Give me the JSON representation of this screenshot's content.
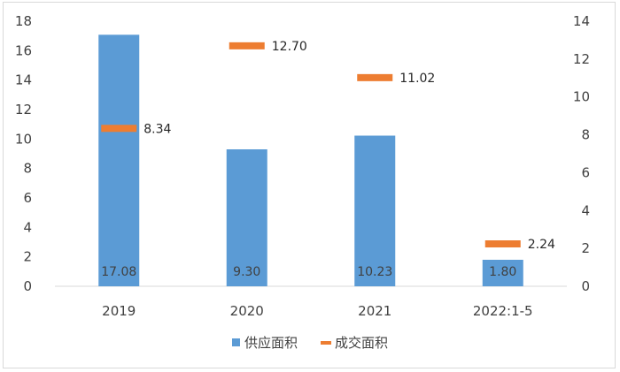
{
  "colors": {
    "bar": "#5b9bd5",
    "marker": "#ed7d31",
    "axis": "#d9d9d9",
    "text": "#404040"
  },
  "chart_data": {
    "type": "bar",
    "categories": [
      "2019",
      "2020",
      "2021",
      "2022:1-5"
    ],
    "series": [
      {
        "name": "供应面积",
        "type": "bar",
        "axis": "left",
        "values": [
          17.08,
          9.3,
          10.23,
          1.8
        ],
        "labels": [
          "17.08",
          "9.30",
          "10.23",
          "1.80"
        ]
      },
      {
        "name": "成交面积",
        "type": "line-marker",
        "axis": "right",
        "values": [
          8.34,
          12.7,
          11.02,
          2.24
        ],
        "labels": [
          "8.34",
          "12.70",
          "11.02",
          "2.24"
        ]
      }
    ],
    "left_axis": {
      "ylim": [
        0,
        18
      ],
      "ticks": [
        "0",
        "2",
        "4",
        "6",
        "8",
        "10",
        "12",
        "14",
        "16",
        "18"
      ]
    },
    "right_axis": {
      "ylim": [
        0,
        14
      ],
      "ticks": [
        "0",
        "2",
        "4",
        "6",
        "8",
        "10",
        "12",
        "14"
      ]
    },
    "grid": false,
    "legend_position": "bottom"
  }
}
